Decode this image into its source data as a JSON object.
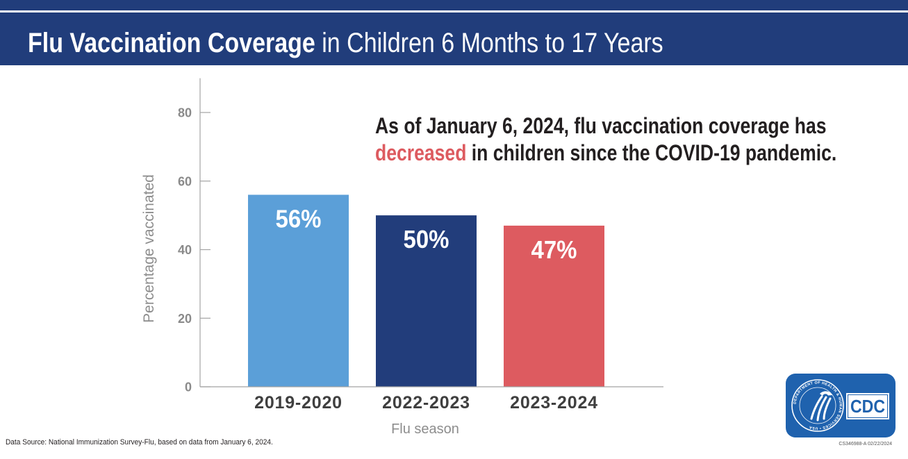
{
  "chart_data": {
    "type": "bar",
    "title_bold": "Flu Vaccination Coverage",
    "title_rest": " in Children 6 Months to 17 Years",
    "categories": [
      "2019-2020",
      "2022-2023",
      "2023-2024"
    ],
    "values": [
      56,
      50,
      47
    ],
    "data_labels": [
      "56%",
      "50%",
      "47%"
    ],
    "colors": [
      "#5b9fd8",
      "#223d7b",
      "#dd5b60"
    ],
    "xlabel": "Flu season",
    "ylabel": "Percentage vaccinated",
    "ylim": [
      0,
      90
    ],
    "yticks": [
      0,
      20,
      40,
      60,
      80
    ],
    "grid": false,
    "annotation": {
      "line1": "As of January 6, 2024, flu vaccination coverage has",
      "highlight": "decreased",
      "line2_rest": " in children since the COVID-19 pandemic.",
      "highlight_color": "#dd5b60"
    }
  },
  "theme": {
    "header_color": "#213d7b",
    "text_color": "#231f20",
    "axis_color": "#a3a3a3",
    "tick_label_color": "#8a8a8a",
    "category_label_color": "#3f3f3f",
    "axis_title_color": "#8d8d8d"
  },
  "footer": {
    "source": "Data Source: National Immunization Survey-Flu, based on data from January 6, 2024.",
    "document_code": "CS346988-A 02/22/2024"
  },
  "logo": {
    "background": "#1f62ae",
    "seal_icon": "hhs-seal-icon",
    "hhs_seal_text": "DEPARTMENT OF HEALTH & HUMAN SERVICES • USA",
    "cdc_text": "CDC"
  }
}
